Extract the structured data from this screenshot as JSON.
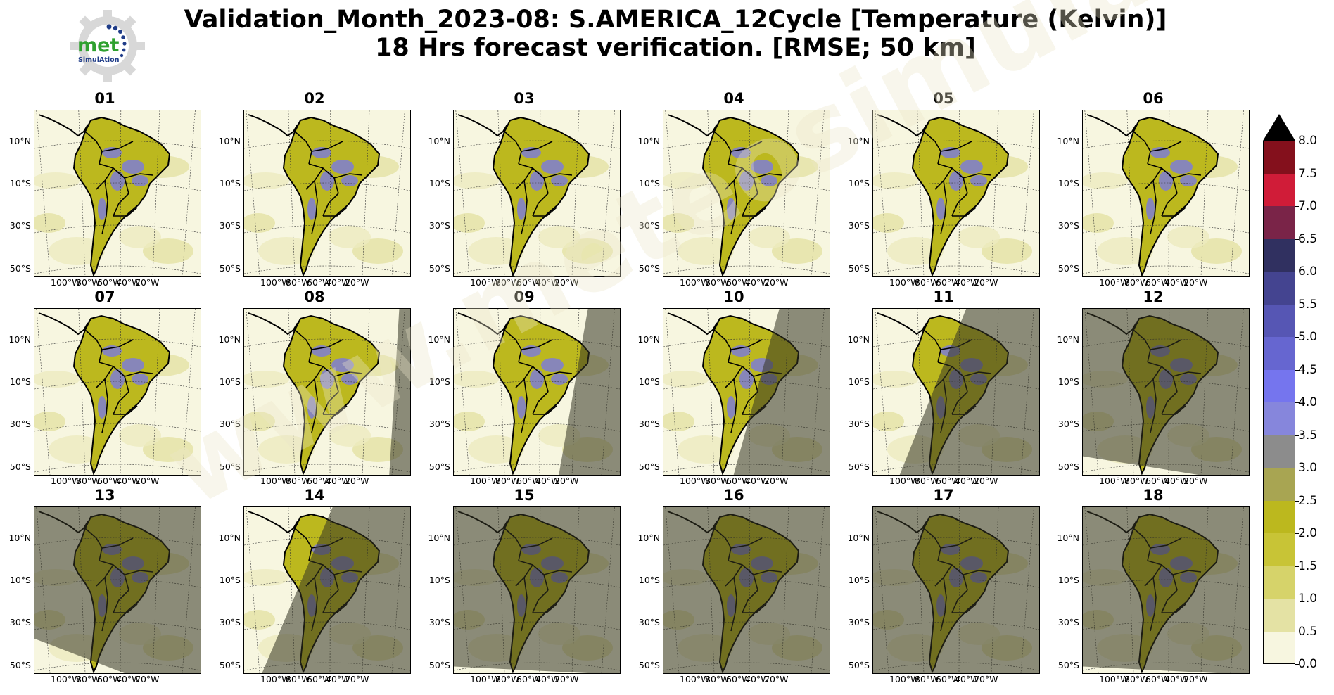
{
  "title": {
    "line1": "Validation_Month_2023-08: S.AMERICA_12Cycle [Temperature (Kelvin)]",
    "line2": "18 Hrs forecast verification.  [RMSE; 50 km]"
  },
  "logo": {
    "text": "met",
    "subtext": "SimulAtion"
  },
  "watermark": "www.meteosimulation.com",
  "lat_labels": [
    "10°N",
    "10°S",
    "30°S",
    "50°S"
  ],
  "lon_labels": [
    "100°W",
    "80°W",
    "60°W",
    "40°W",
    "20°W"
  ],
  "panels": [
    {
      "label": "01",
      "night_fraction": 0.0
    },
    {
      "label": "02",
      "night_fraction": 0.0
    },
    {
      "label": "03",
      "night_fraction": 0.0
    },
    {
      "label": "04",
      "night_fraction": 0.0
    },
    {
      "label": "05",
      "night_fraction": 0.0
    },
    {
      "label": "06",
      "night_fraction": 0.0
    },
    {
      "label": "07",
      "night_fraction": 0.0
    },
    {
      "label": "08",
      "night_fraction": 0.12
    },
    {
      "label": "09",
      "night_fraction": 0.35
    },
    {
      "label": "10",
      "night_fraction": 0.55
    },
    {
      "label": "11",
      "night_fraction": 0.8
    },
    {
      "label": "12",
      "night_fraction": 0.92
    },
    {
      "label": "13",
      "night_fraction": 0.88
    },
    {
      "label": "14",
      "night_fraction": 0.85
    },
    {
      "label": "15",
      "night_fraction": 0.95
    },
    {
      "label": "16",
      "night_fraction": 0.97
    },
    {
      "label": "17",
      "night_fraction": 0.97
    },
    {
      "label": "18",
      "night_fraction": 0.95
    }
  ],
  "colorbar": {
    "extend": "max",
    "ticks": [
      "0.0",
      "0.5",
      "1.0",
      "1.5",
      "2.0",
      "2.5",
      "3.0",
      "3.5",
      "4.0",
      "4.5",
      "5.0",
      "5.5",
      "6.0",
      "6.5",
      "7.0",
      "7.5",
      "8.0"
    ],
    "colors": [
      "#f7f6e0",
      "#e4e2a4",
      "#d6d36a",
      "#c8c436",
      "#bcb81e",
      "#a8a552",
      "#8c8c8c",
      "#8686dc",
      "#7575ee",
      "#6666d0",
      "#5656b4",
      "#444490",
      "#303060",
      "#7a2448",
      "#d01c38",
      "#84101c"
    ],
    "extend_color": "#000000"
  }
}
